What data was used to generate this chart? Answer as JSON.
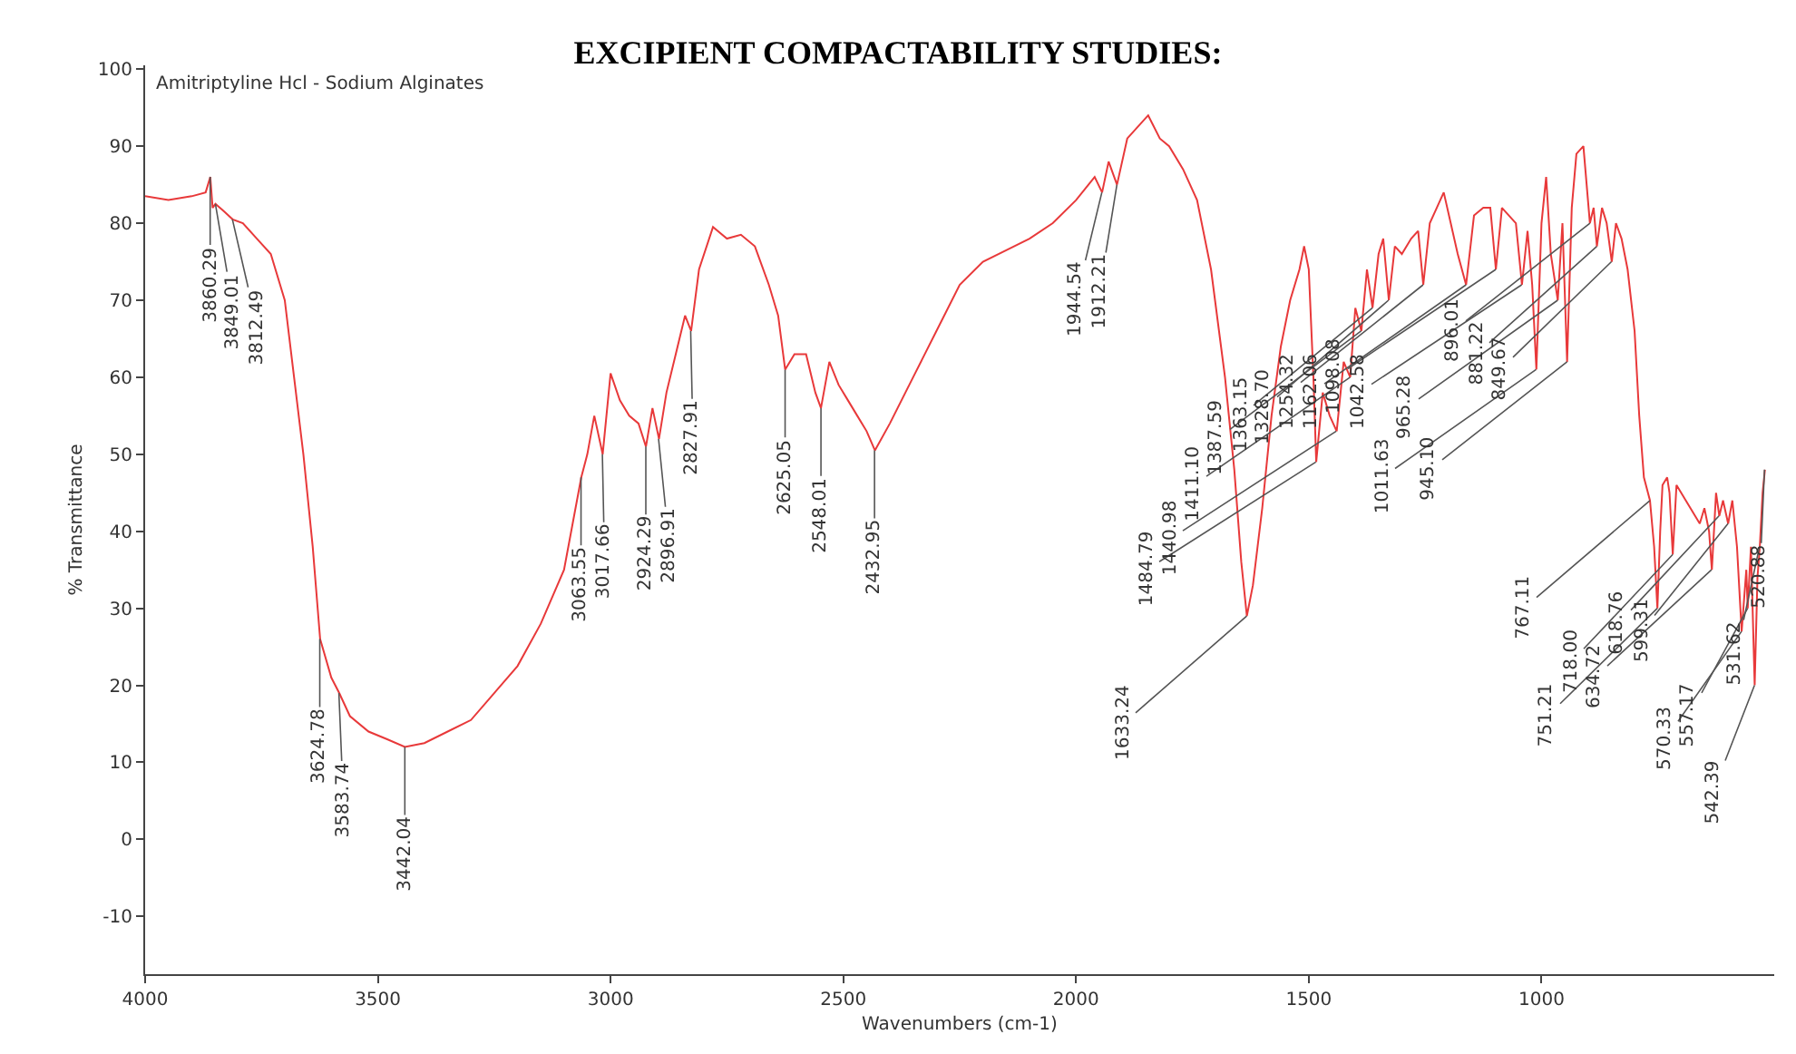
{
  "chart_data": {
    "type": "line",
    "title": "EXCIPIENT COMPACTABILITY STUDIES:",
    "xlabel": "Wavenumbers (cm-1)",
    "ylabel": "% Transmittance",
    "xlim": [
      4000,
      500
    ],
    "xticks": [
      4000,
      3500,
      3000,
      2500,
      2000,
      1500,
      1000
    ],
    "ylim": [
      -17.5,
      100.5
    ],
    "yticks": [
      -10,
      0,
      10,
      20,
      30,
      40,
      50,
      60,
      70,
      80,
      90,
      100
    ],
    "marker": "none",
    "line_style": "solid",
    "series": [
      {
        "color": "#e8393a",
        "x": [
          4000,
          3950,
          3900,
          3870,
          3860,
          3855,
          3849,
          3830,
          3812,
          3790,
          3760,
          3730,
          3700,
          3680,
          3660,
          3640,
          3624,
          3600,
          3583,
          3560,
          3520,
          3480,
          3442,
          3400,
          3350,
          3300,
          3250,
          3200,
          3150,
          3100,
          3063,
          3050,
          3035,
          3017,
          3000,
          2980,
          2960,
          2940,
          2924,
          2910,
          2896,
          2880,
          2860,
          2840,
          2827,
          2810,
          2780,
          2750,
          2720,
          2690,
          2660,
          2640,
          2625,
          2605,
          2580,
          2560,
          2548,
          2530,
          2510,
          2490,
          2470,
          2450,
          2432,
          2400,
          2350,
          2300,
          2250,
          2200,
          2150,
          2100,
          2050,
          2000,
          1960,
          1944,
          1930,
          1912,
          1890,
          1860,
          1845,
          1820,
          1800,
          1770,
          1740,
          1710,
          1680,
          1660,
          1645,
          1633,
          1620,
          1600,
          1580,
          1560,
          1540,
          1520,
          1510,
          1500,
          1490,
          1484,
          1470,
          1455,
          1440,
          1425,
          1411,
          1400,
          1387,
          1375,
          1363,
          1350,
          1340,
          1328,
          1315,
          1300,
          1280,
          1265,
          1254,
          1240,
          1225,
          1210,
          1195,
          1180,
          1162,
          1145,
          1125,
          1110,
          1098,
          1085,
          1070,
          1055,
          1042,
          1030,
          1020,
          1011,
          1000,
          990,
          980,
          965,
          955,
          945,
          935,
          925,
          910,
          896,
          888,
          881,
          870,
          860,
          849,
          840,
          828,
          815,
          800,
          790,
          780,
          767,
          758,
          751,
          745,
          740,
          730,
          725,
          718,
          710,
          700,
          690,
          680,
          670,
          660,
          650,
          640,
          634,
          625,
          618,
          610,
          599,
          590,
          580,
          570,
          560,
          557,
          550,
          542,
          536,
          531,
          525,
          520
        ],
        "values": [
          83.5,
          83,
          83.5,
          84,
          86,
          82,
          82.5,
          81.5,
          80.5,
          80,
          78,
          76,
          70,
          60,
          50,
          38,
          26,
          21,
          19,
          16,
          14,
          13,
          12,
          12.5,
          14,
          15.5,
          19,
          22.5,
          28,
          35,
          47,
          50,
          55,
          50,
          60.5,
          57,
          55,
          54,
          51,
          56,
          52,
          58,
          63,
          68,
          66,
          74,
          79.5,
          78,
          78.5,
          77,
          72,
          68,
          61,
          63,
          63,
          58,
          56,
          62,
          59,
          57,
          55,
          53,
          50.5,
          54,
          60,
          66,
          72,
          75,
          76.5,
          78,
          80,
          83,
          86,
          84,
          88,
          85,
          91,
          93,
          94,
          91,
          90,
          87,
          83,
          74,
          60,
          48,
          36,
          29,
          33,
          43,
          55,
          64,
          70,
          74,
          77,
          74,
          60,
          49,
          58,
          55,
          53,
          62,
          60,
          69,
          66,
          74,
          69,
          76,
          78,
          70,
          77,
          76,
          78,
          79,
          72,
          80,
          82,
          84,
          80,
          76,
          72,
          81,
          82,
          82,
          74,
          82,
          81,
          80,
          72,
          79,
          72,
          61,
          80,
          86,
          76,
          70,
          80,
          62,
          82,
          89,
          90,
          80,
          82,
          77,
          82,
          80,
          75,
          80,
          78,
          74,
          66,
          55,
          47,
          44,
          38,
          30,
          40,
          46,
          47,
          45,
          37,
          46,
          45,
          44,
          43,
          42,
          41,
          43,
          40,
          35,
          45,
          42,
          44,
          41,
          44,
          38,
          27,
          35,
          30,
          38,
          20,
          34,
          38,
          45,
          48
        ]
      }
    ],
    "annotations": [
      "Amitriptyline Hcl - Sodium Alginates",
      {
        "text": "3860.29",
        "x": 3860.29,
        "y": 86
      },
      {
        "text": "3849.01",
        "x": 3849.01,
        "y": 82.5
      },
      {
        "text": "3812.49",
        "x": 3812.49,
        "y": 80.5
      },
      {
        "text": "3624.78",
        "x": 3624.78,
        "y": 26
      },
      {
        "text": "3583.74",
        "x": 3583.74,
        "y": 19
      },
      {
        "text": "3442.04",
        "x": 3442.04,
        "y": 12
      },
      {
        "text": "3063.55",
        "x": 3063.55,
        "y": 47
      },
      {
        "text": "3017.66",
        "x": 3017.66,
        "y": 50
      },
      {
        "text": "2924.29",
        "x": 2924.29,
        "y": 51
      },
      {
        "text": "2896.91",
        "x": 2896.91,
        "y": 52
      },
      {
        "text": "2827.91",
        "x": 2827.91,
        "y": 66
      },
      {
        "text": "2625.05",
        "x": 2625.05,
        "y": 61
      },
      {
        "text": "2548.01",
        "x": 2548.01,
        "y": 56
      },
      {
        "text": "2432.95",
        "x": 2432.95,
        "y": 50.5
      },
      {
        "text": "1944.54",
        "x": 1944.54,
        "y": 84
      },
      {
        "text": "1912.21",
        "x": 1912.21,
        "y": 85
      },
      {
        "text": "1633.24",
        "x": 1633.24,
        "y": 29
      },
      {
        "text": "1484.79",
        "x": 1484.79,
        "y": 49
      },
      {
        "text": "1440.98",
        "x": 1440.98,
        "y": 53
      },
      {
        "text": "1411.10",
        "x": 1411.1,
        "y": 60
      },
      {
        "text": "1387.59",
        "x": 1387.59,
        "y": 66
      },
      {
        "text": "1363.15",
        "x": 1363.15,
        "y": 69
      },
      {
        "text": "1328.70",
        "x": 1328.7,
        "y": 70
      },
      {
        "text": "1254.32",
        "x": 1254.32,
        "y": 72
      },
      {
        "text": "1162.06",
        "x": 1162.06,
        "y": 72
      },
      {
        "text": "1098.08",
        "x": 1098.08,
        "y": 74
      },
      {
        "text": "1042.58",
        "x": 1042.58,
        "y": 72
      },
      {
        "text": "1011.63",
        "x": 1011.63,
        "y": 61
      },
      {
        "text": "965.28",
        "x": 965.28,
        "y": 70
      },
      {
        "text": "945.10",
        "x": 945.1,
        "y": 62
      },
      {
        "text": "896.01",
        "x": 896.01,
        "y": 80
      },
      {
        "text": "881.22",
        "x": 881.22,
        "y": 77
      },
      {
        "text": "849.67",
        "x": 849.67,
        "y": 75
      },
      {
        "text": "767.11",
        "x": 767.11,
        "y": 44
      },
      {
        "text": "751.21",
        "x": 751.21,
        "y": 30
      },
      {
        "text": "718.00",
        "x": 718.0,
        "y": 37
      },
      {
        "text": "634.72",
        "x": 634.72,
        "y": 35
      },
      {
        "text": "618.76",
        "x": 618.76,
        "y": 42
      },
      {
        "text": "599.31",
        "x": 599.31,
        "y": 41
      },
      {
        "text": "570.33",
        "x": 570.33,
        "y": 27
      },
      {
        "text": "557.17",
        "x": 557.17,
        "y": 30
      },
      {
        "text": "542.39",
        "x": 542.39,
        "y": 20
      },
      {
        "text": "531.62",
        "x": 531.62,
        "y": 38
      },
      {
        "text": "520.88",
        "x": 520.88,
        "y": 48
      }
    ]
  }
}
